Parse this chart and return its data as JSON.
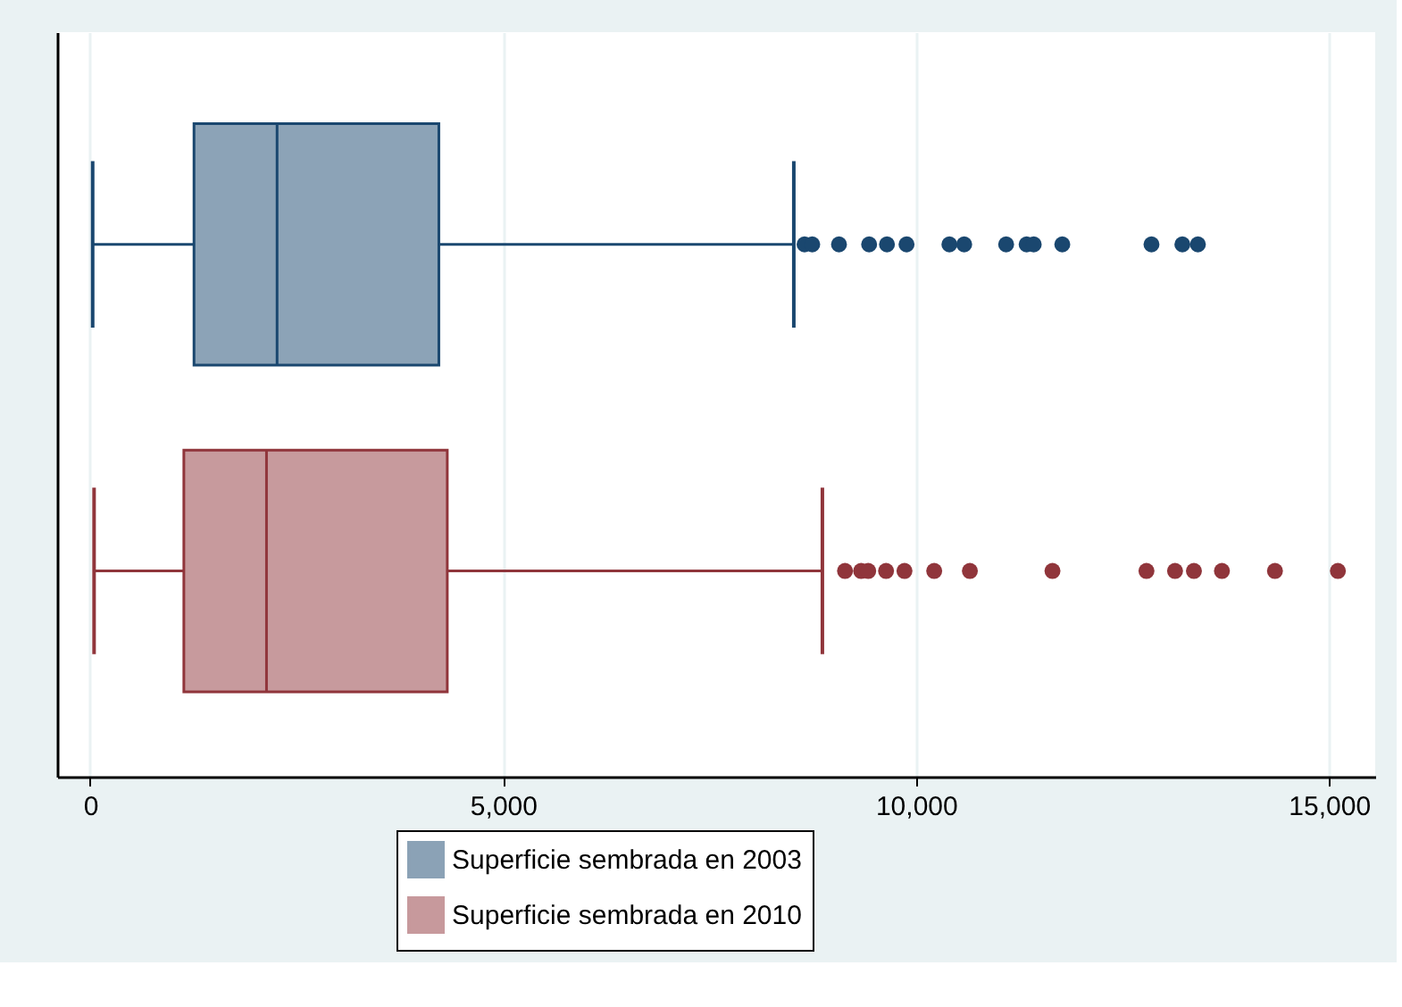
{
  "chart_data": {
    "type": "box",
    "orientation": "horizontal",
    "categories": [
      null
    ],
    "series": [
      {
        "name": "Superficie sembrada en 2003",
        "color": "#1a476f",
        "boxes": [
          {
            "low": 30,
            "q1": 1257,
            "median": 2263,
            "q3": 4222,
            "high": 8520,
            "outliers": [
              8650,
              8743,
              9067,
              9432,
              9648,
              9885,
              10404,
              10583,
              11091,
              11339,
              11425,
              11771,
              12851,
              13225,
              13413
            ]
          }
        ]
      },
      {
        "name": "Superficie sembrada en 2010",
        "color": "#90353b",
        "boxes": [
          {
            "low": 47,
            "q1": 1134,
            "median": 2135,
            "q3": 4324,
            "high": 8866,
            "outliers": [
              9140,
              9335,
              9421,
              9637,
              9860,
              10220,
              10652,
              11652,
              12790,
              13136,
              13365,
              13704,
              14346,
              15108
            ]
          }
        ]
      }
    ],
    "xlim": [
      -400,
      15560
    ],
    "xticks": [
      {
        "value": 0,
        "label": "0"
      },
      {
        "value": 5000,
        "label": "5,000"
      },
      {
        "value": 10000,
        "label": "10,000"
      },
      {
        "value": 15000,
        "label": "15,000"
      }
    ],
    "grid": "x",
    "legend": "bottom",
    "tick_labels": "x",
    "marker": "circle"
  }
}
